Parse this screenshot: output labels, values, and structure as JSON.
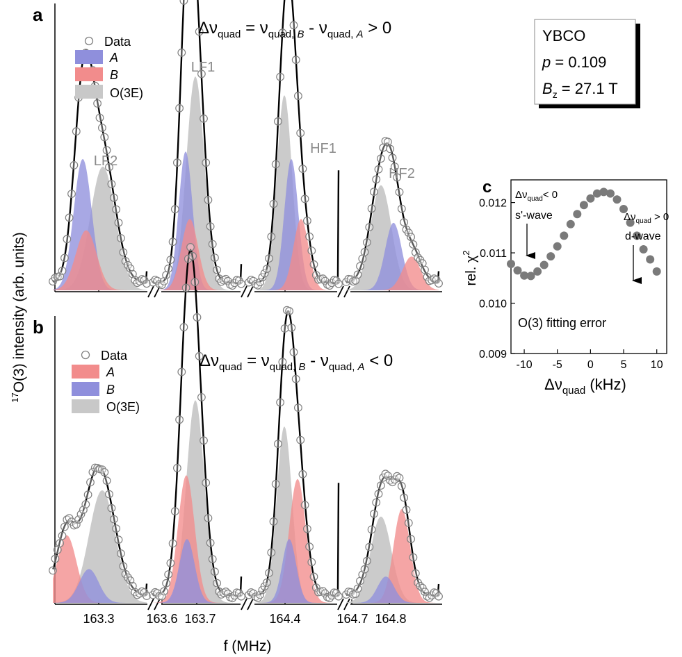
{
  "colors": {
    "A_fill": "#8f8fdc",
    "B_fill": "#f28c8c",
    "O3E_fill": "#c8c8c8",
    "fit_line": "#000000",
    "data_marker": "#808080",
    "chi2_marker": "#7a7a7a",
    "peak_label": "#8a8a8a"
  },
  "panel_a": {
    "letter": "a",
    "equation": "Δν_quad = ν_quad, B - ν_quad, A > 0",
    "eq_main": "Δν",
    "eq_sub1": "quad",
    "eq_mid": " = ν",
    "eq_sub2": "quad, ",
    "eq_sub2_it": "B",
    "eq_mid2": " - ν",
    "eq_sub3": "quad, ",
    "eq_sub3_it": "A",
    "eq_end": " > 0",
    "legend": [
      {
        "label": "Data",
        "style": "circle"
      },
      {
        "label": "A",
        "style": "A",
        "text_color": "#1a1aa8"
      },
      {
        "label": "B",
        "style": "B",
        "text_color": "#d81b1b"
      },
      {
        "label": "O(3E)",
        "style": "O3E",
        "text_color": "#000000"
      }
    ],
    "peak_labels": [
      "LF2",
      "LF1",
      "HF1",
      "HF2"
    ]
  },
  "panel_b": {
    "letter": "b",
    "eq_main": "Δν",
    "eq_sub1": "quad",
    "eq_mid": " = ν",
    "eq_sub2": "quad, ",
    "eq_sub2_it": "B",
    "eq_mid2": " - ν",
    "eq_sub3": "quad, ",
    "eq_sub3_it": "A",
    "eq_end": " < 0",
    "legend": [
      {
        "label": "Data",
        "style": "circle"
      },
      {
        "label": "A",
        "style": "B",
        "text_color": "#d81b1b"
      },
      {
        "label": "B",
        "style": "A",
        "text_color": "#1a1aa8"
      },
      {
        "label": "O(3E)",
        "style": "O3E",
        "text_color": "#000000"
      }
    ]
  },
  "info_box": {
    "line1": "YBCO",
    "p_symbol": "p",
    "p_value": " = 0.109",
    "b_symbol": "B",
    "b_sub": "z",
    "b_value": " = 27.1 T"
  },
  "y_axis_label": {
    "sup": "17",
    "text": "O(3) intensity (arb. units)"
  },
  "x_axis": {
    "label": "f (MHz)",
    "ticks": [
      "163.3",
      "163.6",
      "163.7",
      "164.4",
      "164.7",
      "164.8"
    ]
  },
  "panel_c": {
    "letter": "c",
    "ylabel_main": "rel. χ",
    "ylabel_sup": "2",
    "xlabel_main": "Δν",
    "xlabel_sub": "quad",
    "xlabel_unit": " (kHz)",
    "annot_left_main": "Δν",
    "annot_left_sub": "quad",
    "annot_left_end": "< 0",
    "annot_left_wave": "s'-wave",
    "annot_right_main": "Δν",
    "annot_right_sub": "quad",
    "annot_right_end": " > 0",
    "annot_right_wave": "d-wave",
    "caption": "O(3) fitting error",
    "xticks": [
      -10,
      -5,
      0,
      5,
      10
    ],
    "yticks": [
      0.009,
      0.01,
      0.011,
      0.012
    ]
  },
  "chart_data": [
    {
      "type": "line",
      "panel": "a",
      "xlabel": "f (MHz)",
      "ylabel": "17O(3) intensity (arb. units)",
      "segments": [
        "LF2",
        "LF1",
        "HF1",
        "HF2"
      ],
      "series": [
        {
          "name": "A",
          "peaks": [
            {
              "seg": "LF2",
              "height": 0.35
            },
            {
              "seg": "LF1",
              "height": 0.37
            },
            {
              "seg": "HF1",
              "height": 0.35
            },
            {
              "seg": "HF2",
              "height": 0.18
            }
          ]
        },
        {
          "name": "B",
          "peaks": [
            {
              "seg": "LF2",
              "height": 0.16
            },
            {
              "seg": "LF1",
              "height": 0.19
            },
            {
              "seg": "HF1",
              "height": 0.19
            },
            {
              "seg": "HF2",
              "height": 0.09
            }
          ]
        },
        {
          "name": "O(3E)",
          "peaks": [
            {
              "seg": "LF2",
              "height": 0.33
            },
            {
              "seg": "LF1",
              "height": 0.57
            },
            {
              "seg": "HF1",
              "height": 0.52
            },
            {
              "seg": "HF2",
              "height": 0.28
            }
          ]
        }
      ]
    },
    {
      "type": "line",
      "panel": "b",
      "xlabel": "f (MHz)",
      "ylabel": "17O(3) intensity (arb. units)",
      "segments": [
        "LF2",
        "LF1",
        "HF1",
        "HF2"
      ],
      "series": [
        {
          "name": "A",
          "peaks": [
            {
              "seg": "LF2",
              "height": 0.18
            },
            {
              "seg": "LF1",
              "height": 0.34
            },
            {
              "seg": "HF1",
              "height": 0.33
            },
            {
              "seg": "HF2",
              "height": 0.25
            }
          ]
        },
        {
          "name": "B",
          "peaks": [
            {
              "seg": "LF2",
              "height": 0.09
            },
            {
              "seg": "LF1",
              "height": 0.17
            },
            {
              "seg": "HF1",
              "height": 0.17
            },
            {
              "seg": "HF2",
              "height": 0.07
            }
          ]
        },
        {
          "name": "O(3E)",
          "peaks": [
            {
              "seg": "LF2",
              "height": 0.3
            },
            {
              "seg": "LF1",
              "height": 0.54
            },
            {
              "seg": "HF1",
              "height": 0.47
            },
            {
              "seg": "HF2",
              "height": 0.23
            }
          ]
        }
      ]
    },
    {
      "type": "scatter",
      "panel": "c",
      "xlabel": "Δν_quad (kHz)",
      "ylabel": "rel. χ2",
      "xlim": [
        -12,
        11.5
      ],
      "ylim": [
        0.009,
        0.01245
      ],
      "x": [
        -12,
        -11,
        -10,
        -9,
        -8,
        -7,
        -6,
        -5,
        -4,
        -3,
        -2,
        -1,
        0,
        1,
        2,
        3,
        4,
        5,
        6,
        7,
        8,
        9,
        10
      ],
      "y": [
        0.01078,
        0.01065,
        0.01055,
        0.01054,
        0.01063,
        0.01076,
        0.01093,
        0.01113,
        0.01134,
        0.01157,
        0.01177,
        0.01195,
        0.01208,
        0.01218,
        0.01221,
        0.01218,
        0.01206,
        0.01187,
        0.0116,
        0.01134,
        0.01107,
        0.01087,
        0.01063
      ]
    }
  ]
}
